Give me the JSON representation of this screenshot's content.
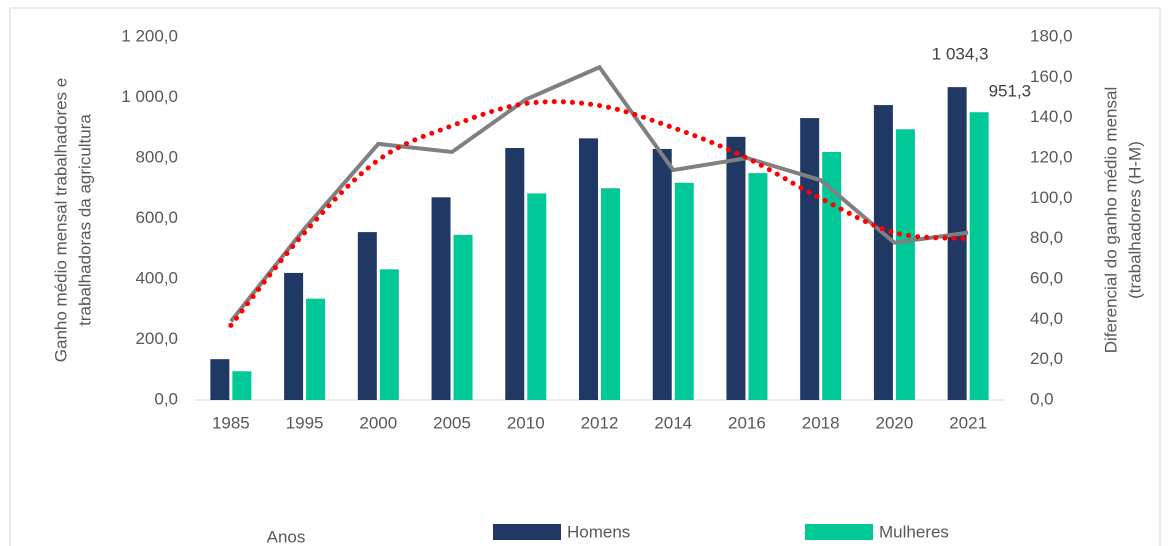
{
  "chart_data": {
    "type": "bar",
    "x_label": "Anos",
    "y_label": [
      "Ganho médio mensal trabalhadores e",
      "trabalhadoras da agricultura"
    ],
    "y2_label": [
      "Diferencial do ganho médio mensal",
      "(trabalhadores  (H-M)"
    ],
    "categories": [
      "1985",
      "1995",
      "2000",
      "2005",
      "2010",
      "2012",
      "2014",
      "2016",
      "2018",
      "2020",
      "2021"
    ],
    "series": [
      {
        "name": "Homens",
        "color": "#203864",
        "values": [
          135,
          420,
          555,
          670,
          833,
          865,
          830,
          870,
          932,
          975,
          1034.3
        ],
        "value_labels": [
          null,
          null,
          null,
          null,
          null,
          null,
          null,
          null,
          null,
          null,
          "1 034,3"
        ]
      },
      {
        "name": "Mulheres",
        "color": "#00c896",
        "values": [
          95,
          335,
          432,
          546,
          683,
          700,
          718,
          750,
          820,
          895,
          951.3
        ],
        "value_labels": [
          null,
          null,
          null,
          null,
          null,
          null,
          null,
          null,
          null,
          null,
          "951,3"
        ]
      },
      {
        "type": "line",
        "axis": "y2",
        "color": "#808080",
        "values": [
          39,
          85,
          127,
          123,
          149,
          165,
          114,
          120,
          109,
          78,
          83
        ]
      }
    ],
    "trendline": {
      "axis": "y2",
      "color": "#ff0000",
      "style": "dotted",
      "values": [
        37,
        83,
        119,
        136,
        147,
        146,
        135,
        120,
        100,
        83,
        80
      ]
    },
    "ylim": [
      0,
      1200
    ],
    "yticks": [
      {
        "value": 0,
        "label": "0,0"
      },
      {
        "value": 200,
        "label": "200,0"
      },
      {
        "value": 400,
        "label": "400,0"
      },
      {
        "value": 600,
        "label": "600,0"
      },
      {
        "value": 800,
        "label": "800,0"
      },
      {
        "value": 1000,
        "label": "1 000,0"
      },
      {
        "value": 1200,
        "label": "1 200,0"
      }
    ],
    "y2lim": [
      0,
      180
    ],
    "y2ticks": [
      {
        "value": 0,
        "label": "0,0"
      },
      {
        "value": 20,
        "label": "20,0"
      },
      {
        "value": 40,
        "label": "40,0"
      },
      {
        "value": 60,
        "label": "60,0"
      },
      {
        "value": 80,
        "label": "80,0"
      },
      {
        "value": 100,
        "label": "100,0"
      },
      {
        "value": 120,
        "label": "120,0"
      },
      {
        "value": 140,
        "label": "140,0"
      },
      {
        "value": 160,
        "label": "160,0"
      },
      {
        "value": 180,
        "label": "180,0"
      }
    ],
    "grid": true,
    "legend": "bottom"
  }
}
